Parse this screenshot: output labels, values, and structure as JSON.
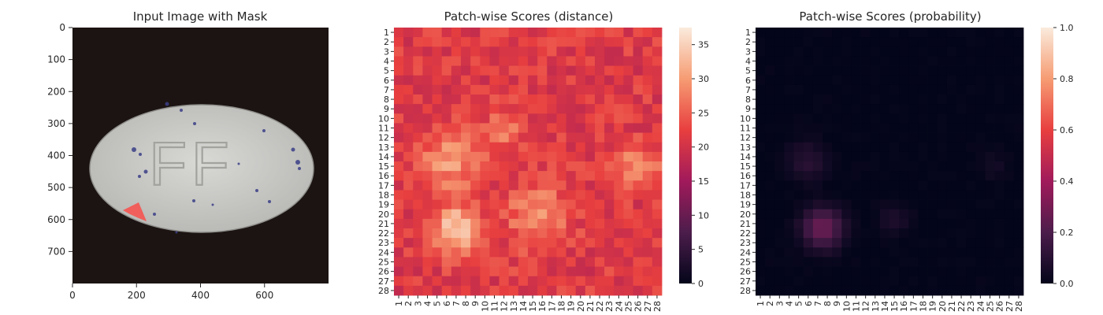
{
  "panels": {
    "image": {
      "title": "Input Image with Mask",
      "x_ticks": [
        "0",
        "200",
        "400",
        "600"
      ],
      "y_ticks": [
        "0",
        "100",
        "200",
        "300",
        "400",
        "500",
        "600",
        "700"
      ],
      "x_range": [
        0,
        800
      ],
      "y_range": [
        0,
        800
      ],
      "embossed_text": "FF",
      "colors": {
        "background": "#1c1412",
        "pill": "#c9c9c6",
        "speckle": "#3a3f86",
        "mask": "#f25a55"
      }
    },
    "distance": {
      "title": "Patch-wise Scores (distance)",
      "colorbar_ticks": [
        "0",
        "5",
        "10",
        "15",
        "20",
        "25",
        "30",
        "35"
      ],
      "colormap": [
        "#03051a",
        "#4c1d4b",
        "#a11a5b",
        "#e83f3f",
        "#f69c73",
        "#faebdd"
      ]
    },
    "probability": {
      "title": "Patch-wise Scores (probability)",
      "colorbar_ticks": [
        "0.0",
        "0.2",
        "0.4",
        "0.6",
        "0.8",
        "1.0"
      ],
      "colormap": [
        "#03051a",
        "#4c1d4b",
        "#a11a5b",
        "#e83f3f",
        "#f69c73",
        "#faebdd"
      ]
    }
  },
  "chart_data": [
    {
      "type": "heatmap",
      "title": "Patch-wise Scores (distance)",
      "rows": [
        "1",
        "2",
        "3",
        "4",
        "5",
        "6",
        "7",
        "8",
        "9",
        "10",
        "11",
        "12",
        "13",
        "14",
        "15",
        "16",
        "17",
        "18",
        "19",
        "20",
        "21",
        "22",
        "23",
        "24",
        "25",
        "26",
        "27",
        "28"
      ],
      "cols": [
        "1",
        "2",
        "3",
        "4",
        "5",
        "6",
        "7",
        "8",
        "9",
        "10",
        "11",
        "12",
        "13",
        "14",
        "15",
        "16",
        "17",
        "18",
        "19",
        "20",
        "21",
        "22",
        "23",
        "24",
        "25",
        "26",
        "27",
        "28"
      ],
      "vmin": 0,
      "vmax": 37.5,
      "base_value": 21.5,
      "hotspots": [
        {
          "row": 14.5,
          "col": 6.5,
          "value": 30,
          "radius": 2.2
        },
        {
          "row": 21.5,
          "col": 7,
          "value": 34,
          "radius": 1.8
        },
        {
          "row": 20,
          "col": 15.5,
          "value": 29,
          "radius": 2.2
        },
        {
          "row": 15,
          "col": 26,
          "value": 30,
          "radius": 1.4
        },
        {
          "row": 11,
          "col": 12,
          "value": 27,
          "radius": 1.5
        }
      ],
      "colorbar_range": [
        0,
        37.5
      ]
    },
    {
      "type": "heatmap",
      "title": "Patch-wise Scores (probability)",
      "rows": [
        "1",
        "2",
        "3",
        "4",
        "5",
        "6",
        "7",
        "8",
        "9",
        "10",
        "11",
        "12",
        "13",
        "14",
        "15",
        "16",
        "17",
        "18",
        "19",
        "20",
        "21",
        "22",
        "23",
        "24",
        "25",
        "26",
        "27",
        "28"
      ],
      "cols": [
        "1",
        "2",
        "3",
        "4",
        "5",
        "6",
        "7",
        "8",
        "9",
        "10",
        "11",
        "12",
        "13",
        "14",
        "15",
        "16",
        "17",
        "18",
        "19",
        "20",
        "21",
        "22",
        "23",
        "24",
        "25",
        "26",
        "27",
        "28"
      ],
      "vmin": 0,
      "vmax": 1.0,
      "base_value": 0.0,
      "hotspots": [
        {
          "row": 21.5,
          "col": 7.5,
          "value": 0.28,
          "radius": 1.5
        },
        {
          "row": 14.5,
          "col": 6,
          "value": 0.1,
          "radius": 1.5
        },
        {
          "row": 20.5,
          "col": 15,
          "value": 0.07,
          "radius": 1.2
        },
        {
          "row": 15,
          "col": 25.5,
          "value": 0.05,
          "radius": 1.0
        }
      ],
      "colorbar_range": [
        0,
        1.0
      ]
    }
  ]
}
